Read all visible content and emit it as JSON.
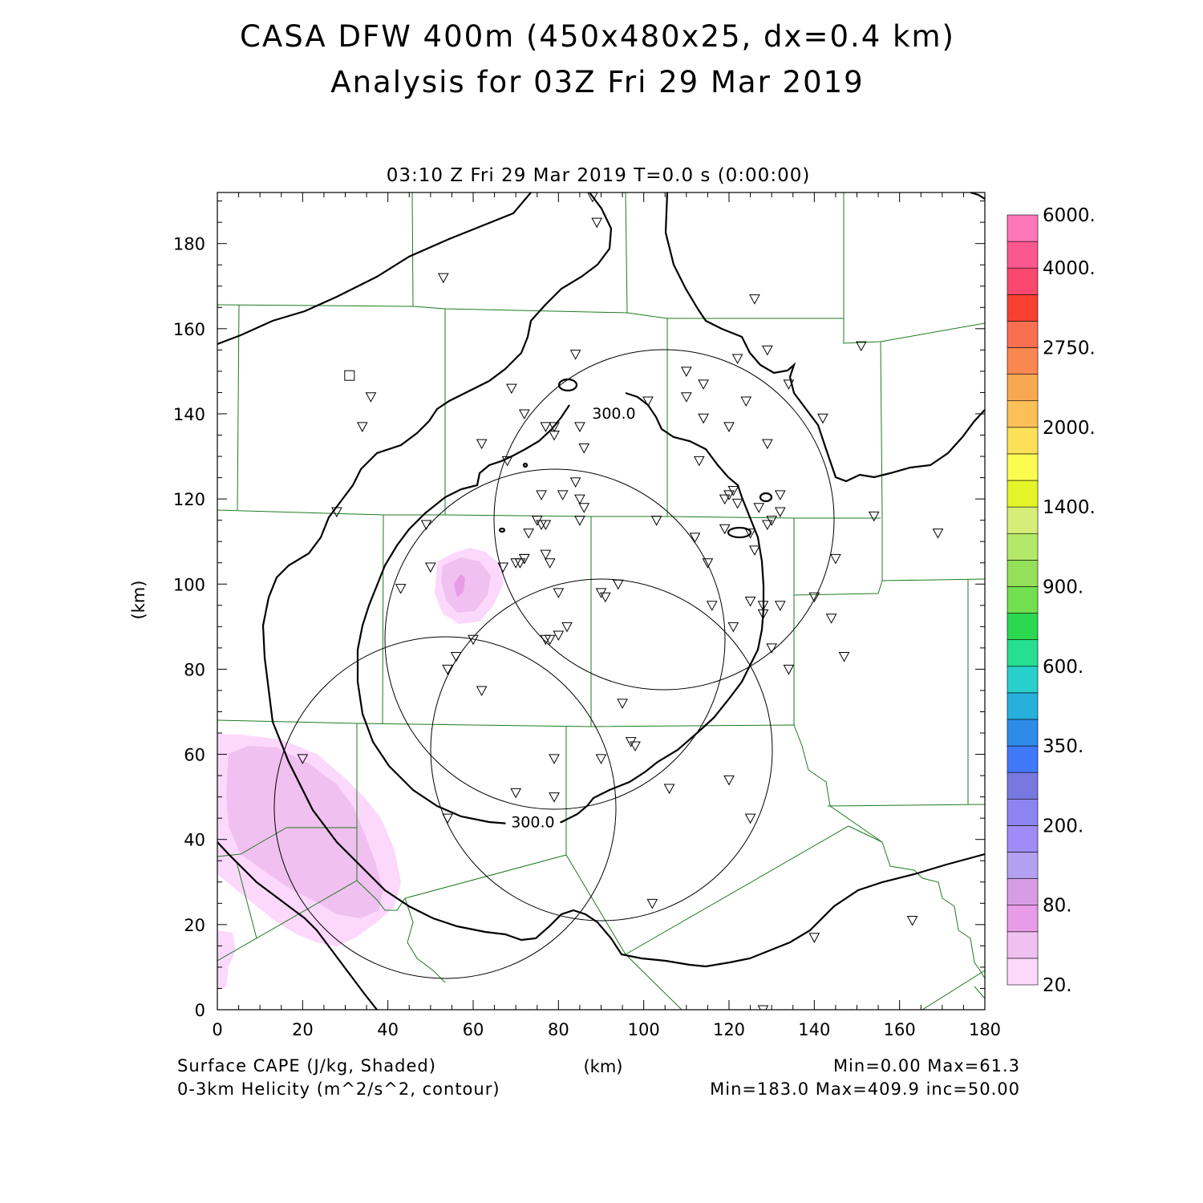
{
  "title": {
    "line1": "CASA DFW 400m (450x480x25, dx=0.4 km)",
    "line2": "Analysis for 03Z Fri 29 Mar 2019"
  },
  "subtitle": "03:10 Z Fri 29 Mar 2019    T=0.0 s (0:00:00)",
  "axes": {
    "x_label": "(km)",
    "y_label": "(km)",
    "xlim": [
      0,
      180
    ],
    "ylim": [
      0,
      192
    ],
    "x_ticks": [
      "0",
      "20",
      "40",
      "60",
      "80",
      "100",
      "120",
      "140",
      "160",
      "180"
    ],
    "y_ticks": [
      "0",
      "20",
      "40",
      "60",
      "80",
      "100",
      "120",
      "140",
      "160",
      "180"
    ]
  },
  "footer": {
    "left1": "Surface CAPE (J/kg, Shaded)",
    "left2": "0-3km Helicity (m^2/s^2, contour)",
    "right1": "Min=0.00  Max=61.3",
    "right2": "Min=183.0  Max=409.9  inc=50.00"
  },
  "colorbar": {
    "colors": [
      "#fcd8fc",
      "#f0c0f0",
      "#e89ce8",
      "#d89ce4",
      "#b4a0f0",
      "#a08cf8",
      "#8c84f0",
      "#7878e0",
      "#4078f8",
      "#2c8ce8",
      "#28b0dc",
      "#28d0cc",
      "#24e090",
      "#2cd850",
      "#70e050",
      "#94e058",
      "#b4e868",
      "#d8ec78",
      "#e4f428",
      "#fcfc50",
      "#fce058",
      "#fcc058",
      "#f8a850",
      "#f88850",
      "#f87050",
      "#f84030",
      "#f84870",
      "#fc5890",
      "#fc78b8"
    ],
    "labels": [
      {
        "text": "20.",
        "index": 0
      },
      {
        "text": "80.",
        "index": 3
      },
      {
        "text": "200.",
        "index": 6
      },
      {
        "text": "350.",
        "index": 9
      },
      {
        "text": "600.",
        "index": 12
      },
      {
        "text": "900.",
        "index": 15
      },
      {
        "text": "1400.",
        "index": 18
      },
      {
        "text": "2000.",
        "index": 21
      },
      {
        "text": "2750.",
        "index": 24
      },
      {
        "text": "4000.",
        "index": 27
      },
      {
        "text": "6000.",
        "index": 29
      }
    ]
  },
  "contour_labels": [
    {
      "text": "300.0",
      "x": 93,
      "y": 140
    },
    {
      "text": "300.0",
      "x": 74,
      "y": 44
    }
  ],
  "stations": [
    [
      88,
      191
    ],
    [
      89,
      185
    ],
    [
      53,
      172
    ],
    [
      36,
      144
    ],
    [
      34,
      137
    ],
    [
      28,
      117
    ],
    [
      49,
      114
    ],
    [
      50,
      104
    ],
    [
      43,
      99
    ],
    [
      62,
      133
    ],
    [
      69,
      146
    ],
    [
      72,
      140
    ],
    [
      68,
      129
    ],
    [
      77,
      137
    ],
    [
      79,
      137
    ],
    [
      79,
      135
    ],
    [
      84,
      154
    ],
    [
      85,
      137
    ],
    [
      86,
      132
    ],
    [
      84,
      124
    ],
    [
      85,
      120
    ],
    [
      86,
      118
    ],
    [
      81,
      121
    ],
    [
      76,
      121
    ],
    [
      75,
      115
    ],
    [
      77,
      114
    ],
    [
      76,
      114
    ],
    [
      73,
      112
    ],
    [
      72,
      106
    ],
    [
      71,
      105
    ],
    [
      70,
      105
    ],
    [
      67,
      104
    ],
    [
      77,
      107
    ],
    [
      78,
      105
    ],
    [
      72,
      106
    ],
    [
      85,
      115
    ],
    [
      103,
      115
    ],
    [
      101,
      143
    ],
    [
      110,
      150
    ],
    [
      113,
      129
    ],
    [
      110,
      144
    ],
    [
      114,
      147
    ],
    [
      114,
      139
    ],
    [
      120,
      137
    ],
    [
      122,
      153
    ],
    [
      124,
      143
    ],
    [
      129,
      155
    ],
    [
      129,
      133
    ],
    [
      126,
      167
    ],
    [
      129,
      114
    ],
    [
      130,
      115
    ],
    [
      132,
      117
    ],
    [
      132,
      121
    ],
    [
      127,
      118
    ],
    [
      134,
      147
    ],
    [
      142,
      139
    ],
    [
      151,
      156
    ],
    [
      154,
      116
    ],
    [
      169,
      112
    ],
    [
      145,
      106
    ],
    [
      140,
      97
    ],
    [
      144,
      92
    ],
    [
      147,
      83
    ],
    [
      134,
      80
    ],
    [
      130,
      85
    ],
    [
      128,
      93
    ],
    [
      128,
      95
    ],
    [
      125,
      96
    ],
    [
      126,
      108
    ],
    [
      125,
      112
    ],
    [
      122,
      119
    ],
    [
      121,
      122
    ],
    [
      120,
      121
    ],
    [
      119,
      120
    ],
    [
      119,
      113
    ],
    [
      115,
      105
    ],
    [
      112,
      111
    ],
    [
      116,
      95
    ],
    [
      121,
      90
    ],
    [
      132,
      95
    ],
    [
      90,
      98
    ],
    [
      91,
      97
    ],
    [
      94,
      100
    ],
    [
      80,
      98
    ],
    [
      82,
      90
    ],
    [
      80,
      88
    ],
    [
      78,
      87
    ],
    [
      77,
      87
    ],
    [
      60,
      87
    ],
    [
      56,
      83
    ],
    [
      54,
      80
    ],
    [
      62,
      75
    ],
    [
      95,
      72
    ],
    [
      97,
      63
    ],
    [
      98,
      62
    ],
    [
      90,
      59
    ],
    [
      79,
      59
    ],
    [
      79,
      50
    ],
    [
      70,
      51
    ],
    [
      54,
      45
    ],
    [
      20,
      59
    ],
    [
      106,
      52
    ],
    [
      120,
      54
    ],
    [
      125,
      45
    ],
    [
      102,
      25
    ],
    [
      140,
      17
    ],
    [
      163,
      21
    ],
    [
      128,
      0
    ]
  ],
  "square_marker": [
    31,
    149
  ]
}
